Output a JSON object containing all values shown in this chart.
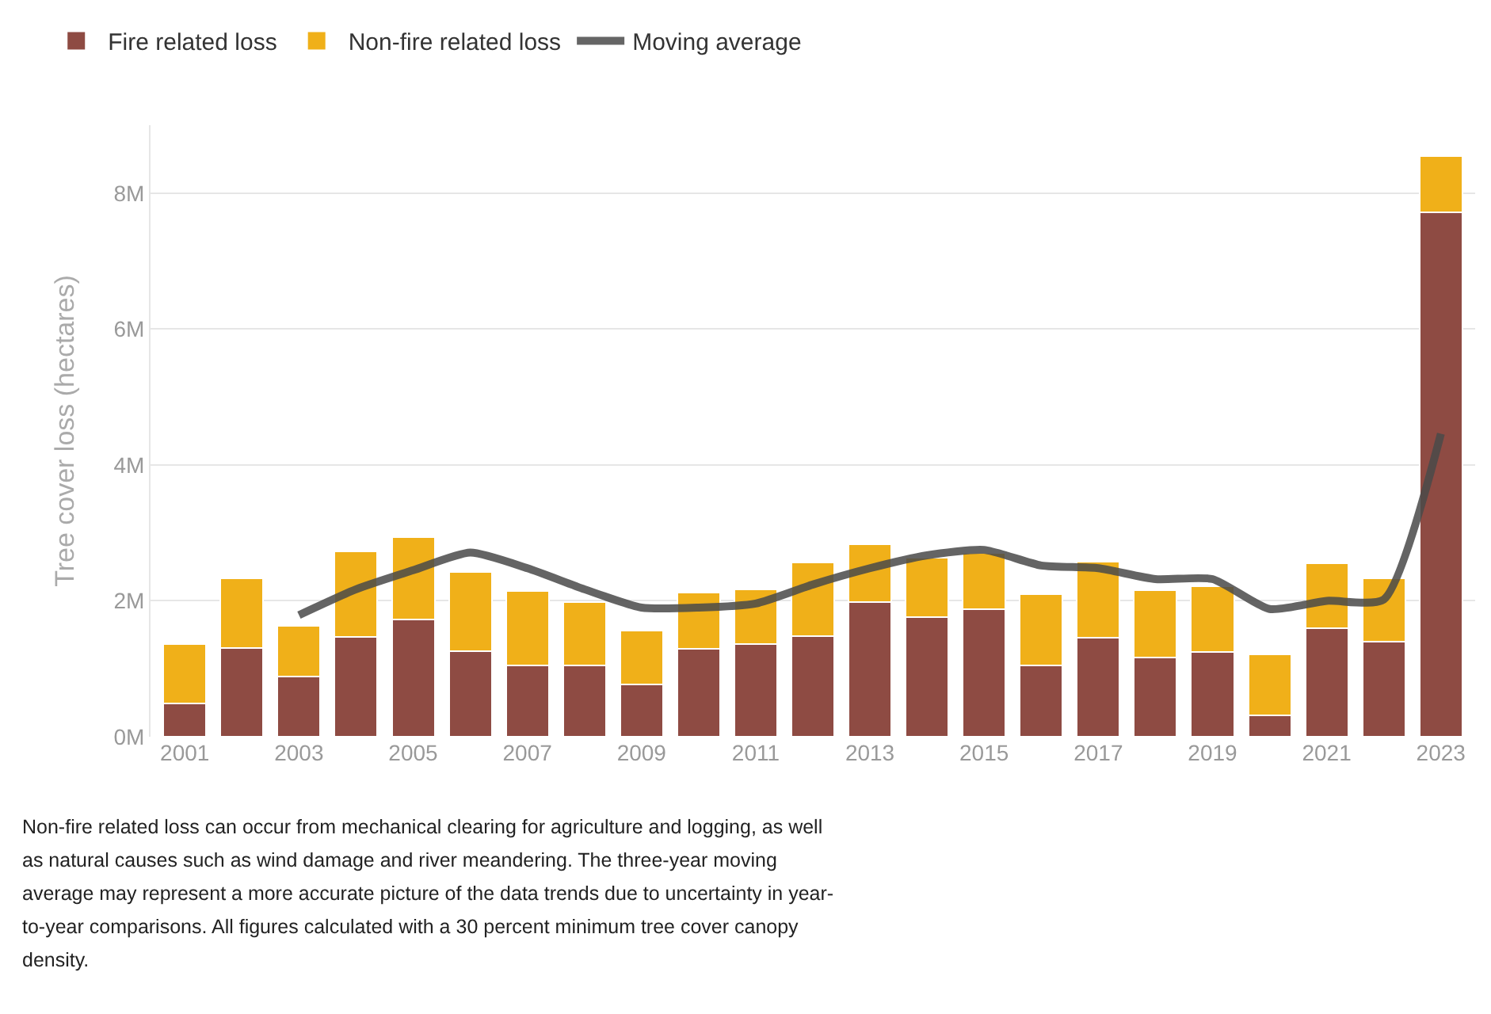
{
  "chart_data": {
    "type": "bar",
    "stacked": true,
    "ylabel": "Tree cover loss (hectares)",
    "x": [
      2001,
      2002,
      2003,
      2004,
      2005,
      2006,
      2007,
      2008,
      2009,
      2010,
      2011,
      2012,
      2013,
      2014,
      2015,
      2016,
      2017,
      2018,
      2019,
      2020,
      2021,
      2022,
      2023
    ],
    "series": [
      {
        "name": "Fire related loss",
        "color": "#8e4b43",
        "values": [
          0.49,
          1.31,
          0.89,
          1.47,
          1.72,
          1.26,
          1.05,
          1.05,
          0.77,
          1.29,
          1.36,
          1.48,
          1.98,
          1.76,
          1.88,
          1.05,
          1.46,
          1.17,
          1.25,
          0.31,
          1.6,
          1.4,
          7.72
        ]
      },
      {
        "name": "Non-fire related loss",
        "color": "#f0b019",
        "values": [
          0.87,
          1.02,
          0.74,
          1.26,
          1.22,
          1.16,
          1.09,
          0.93,
          0.79,
          0.83,
          0.81,
          1.09,
          0.85,
          0.87,
          0.83,
          1.05,
          1.12,
          0.99,
          0.96,
          0.9,
          0.95,
          0.93,
          0.83
        ]
      },
      {
        "name": "Moving average",
        "type": "line",
        "color": "#4a4a4a",
        "x": [
          2003,
          2004,
          2005,
          2006,
          2007,
          2008,
          2009,
          2010,
          2011,
          2012,
          2013,
          2014,
          2015,
          2016,
          2017,
          2018,
          2019,
          2020,
          2021,
          2022,
          2023
        ],
        "values": [
          1.79,
          2.17,
          2.45,
          2.71,
          2.48,
          2.17,
          1.9,
          1.9,
          1.96,
          2.24,
          2.48,
          2.67,
          2.75,
          2.52,
          2.48,
          2.32,
          2.32,
          1.88,
          2.0,
          2.02,
          4.46
        ]
      }
    ],
    "xlim": [
      2000.4,
      2023.6
    ],
    "xticks": [
      2001,
      2003,
      2005,
      2007,
      2009,
      2011,
      2013,
      2015,
      2017,
      2019,
      2021,
      2023
    ],
    "ylim": [
      0,
      9
    ],
    "yticks": [
      {
        "value": 0,
        "label": "0M"
      },
      {
        "value": 2,
        "label": "2M"
      },
      {
        "value": 4,
        "label": "4M"
      },
      {
        "value": 6,
        "label": "6M"
      },
      {
        "value": 8,
        "label": "8M"
      }
    ],
    "grid": "y",
    "legend": "top left",
    "annotations": [
      "Non-fire related loss can occur from mechanical clearing for agriculture and logging, as well as natural causes such as wind damage and river meandering. The three-year moving average may represent a more accurate picture of the data trends due to uncertainty in year-to-year comparisons. All figures calculated with a 30 percent minimum tree cover canopy density."
    ]
  }
}
